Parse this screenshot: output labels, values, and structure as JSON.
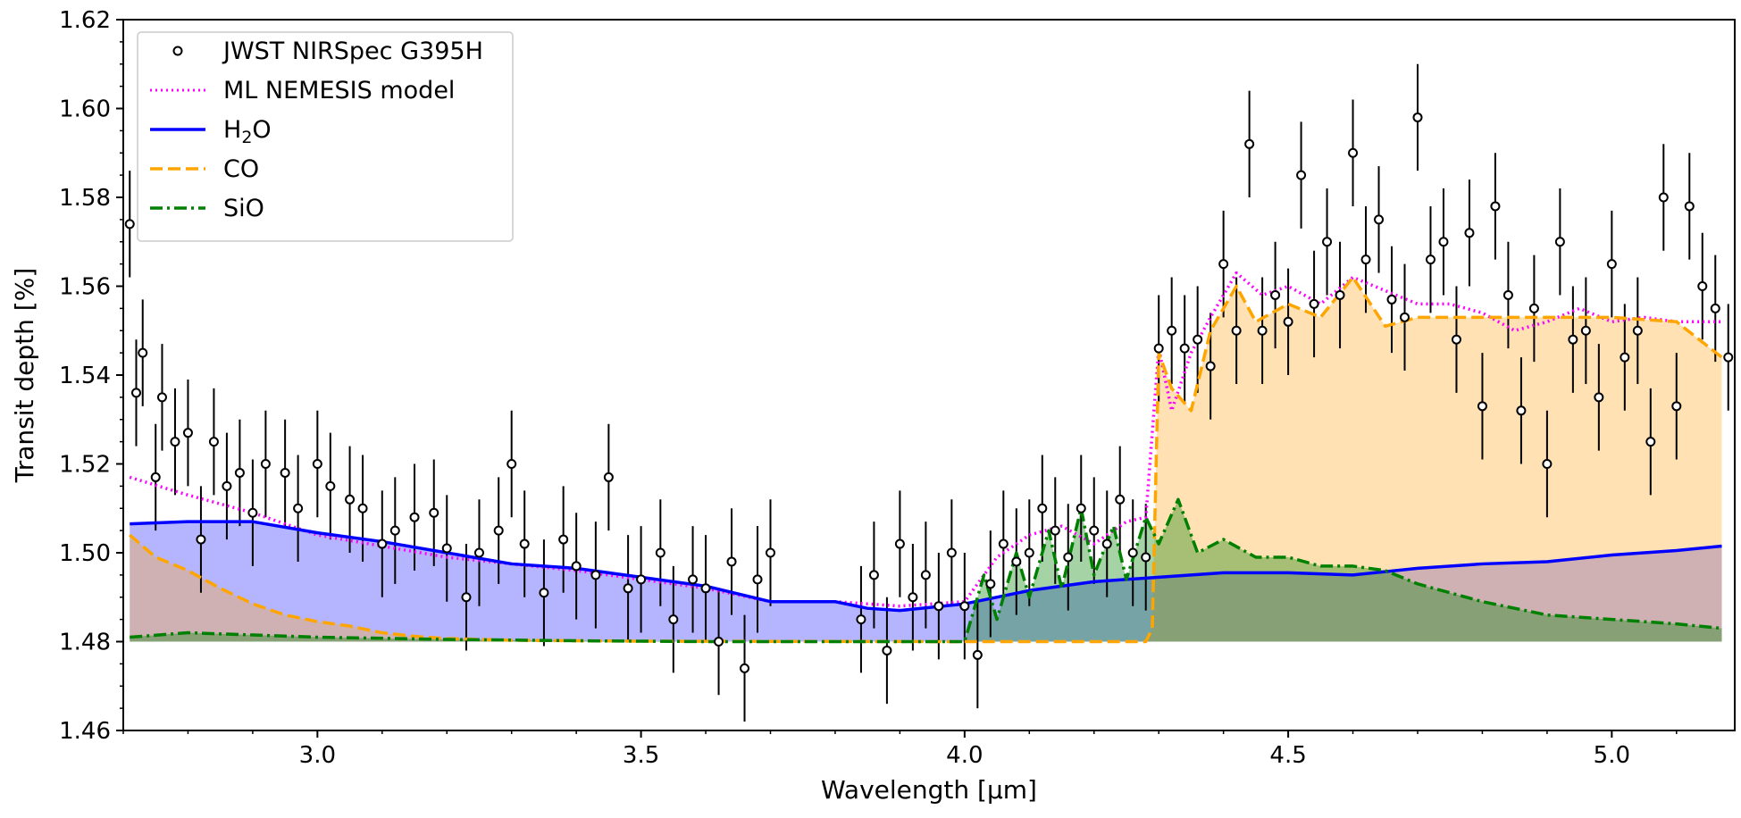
{
  "chart_data": {
    "type": "line",
    "title": "",
    "xlabel": "Wavelength [μm]",
    "ylabel": "Transit depth [%]",
    "xlim": [
      2.7,
      5.19
    ],
    "ylim": [
      1.46,
      1.62
    ],
    "x_ticks": [
      3.0,
      3.5,
      4.0,
      4.5,
      5.0
    ],
    "x_tick_labels": [
      "3.0",
      "3.5",
      "4.0",
      "4.5",
      "5.0"
    ],
    "y_ticks": [
      1.46,
      1.48,
      1.5,
      1.52,
      1.54,
      1.56,
      1.58,
      1.6,
      1.62
    ],
    "y_tick_labels": [
      "1.46",
      "1.48",
      "1.50",
      "1.52",
      "1.54",
      "1.56",
      "1.58",
      "1.60",
      "1.62"
    ],
    "baseline": 1.48,
    "legend_position": "top-left",
    "grid": false,
    "legend": [
      {
        "label": "JWST NIRSpec G395H",
        "style": "marker",
        "color": "#000000"
      },
      {
        "label": "ML NEMESIS model",
        "style": "dotted",
        "color": "#ff00ff"
      },
      {
        "label_main": "H",
        "label_sub": "2",
        "label_tail": "O",
        "style": "solid",
        "color": "#0000ff"
      },
      {
        "label": "CO",
        "style": "dashed",
        "color": "#ffa500"
      },
      {
        "label": "SiO",
        "style": "dashdot",
        "color": "#008000"
      }
    ],
    "series": [
      {
        "name": "ML NEMESIS model",
        "color": "#ff00ff",
        "style": "dotted",
        "x": [
          2.71,
          2.8,
          2.9,
          3.0,
          3.2,
          3.4,
          3.6,
          3.7,
          3.8,
          3.9,
          4.0,
          4.05,
          4.1,
          4.15,
          4.2,
          4.25,
          4.28,
          4.3,
          4.32,
          4.35,
          4.38,
          4.42,
          4.46,
          4.5,
          4.55,
          4.6,
          4.65,
          4.7,
          4.75,
          4.8,
          4.85,
          4.9,
          4.95,
          5.0,
          5.05,
          5.1,
          5.17
        ],
        "y": [
          1.517,
          1.513,
          1.509,
          1.504,
          1.499,
          1.496,
          1.492,
          1.489,
          1.489,
          1.488,
          1.489,
          1.499,
          1.504,
          1.506,
          1.502,
          1.507,
          1.508,
          1.546,
          1.532,
          1.545,
          1.553,
          1.563,
          1.558,
          1.56,
          1.556,
          1.562,
          1.559,
          1.556,
          1.556,
          1.554,
          1.55,
          1.552,
          1.555,
          1.552,
          1.553,
          1.552,
          1.552
        ]
      },
      {
        "name": "H2O",
        "color": "#0000ff",
        "style": "solid",
        "fill": "rgba(90,90,255,0.45)",
        "x": [
          2.71,
          2.8,
          2.9,
          3.0,
          3.1,
          3.2,
          3.3,
          3.4,
          3.5,
          3.6,
          3.7,
          3.8,
          3.85,
          3.9,
          4.0,
          4.1,
          4.2,
          4.3,
          4.4,
          4.5,
          4.6,
          4.7,
          4.8,
          4.9,
          5.0,
          5.1,
          5.17
        ],
        "y": [
          1.5065,
          1.507,
          1.507,
          1.5045,
          1.5025,
          1.5,
          1.4975,
          1.4965,
          1.4945,
          1.4925,
          1.489,
          1.489,
          1.4875,
          1.487,
          1.4885,
          1.4915,
          1.4935,
          1.4945,
          1.4955,
          1.4955,
          1.495,
          1.4965,
          1.4975,
          1.498,
          1.4995,
          1.5005,
          1.5015
        ]
      },
      {
        "name": "CO",
        "color": "#ffa500",
        "style": "dashed",
        "fill": "rgba(255,170,40,0.35)",
        "x": [
          2.71,
          2.75,
          2.8,
          2.85,
          2.9,
          2.95,
          3.0,
          3.05,
          3.1,
          3.15,
          3.2,
          3.3,
          3.5,
          4.0,
          4.25,
          4.28,
          4.29,
          4.3,
          4.32,
          4.35,
          4.38,
          4.42,
          4.45,
          4.5,
          4.55,
          4.6,
          4.65,
          4.7,
          4.8,
          4.9,
          5.0,
          5.1,
          5.17
        ],
        "y": [
          1.504,
          1.499,
          1.496,
          1.492,
          1.4885,
          1.486,
          1.4845,
          1.4835,
          1.482,
          1.4812,
          1.4807,
          1.4803,
          1.4801,
          1.48,
          1.48,
          1.48,
          1.483,
          1.545,
          1.537,
          1.532,
          1.55,
          1.56,
          1.552,
          1.556,
          1.553,
          1.562,
          1.551,
          1.553,
          1.553,
          1.553,
          1.553,
          1.552,
          1.544
        ]
      },
      {
        "name": "SiO",
        "color": "#008000",
        "style": "dashdot",
        "fill": "rgba(0,128,0,0.35)",
        "x": [
          2.71,
          2.8,
          2.9,
          3.0,
          3.2,
          3.4,
          3.6,
          3.8,
          4.0,
          4.03,
          4.05,
          4.08,
          4.1,
          4.13,
          4.15,
          4.18,
          4.2,
          4.23,
          4.25,
          4.28,
          4.3,
          4.33,
          4.36,
          4.4,
          4.45,
          4.5,
          4.55,
          4.6,
          4.65,
          4.7,
          4.75,
          4.8,
          4.9,
          5.0,
          5.1,
          5.17
        ],
        "y": [
          1.481,
          1.482,
          1.4815,
          1.481,
          1.4805,
          1.4802,
          1.48,
          1.48,
          1.48,
          1.495,
          1.485,
          1.5,
          1.49,
          1.505,
          1.492,
          1.51,
          1.495,
          1.506,
          1.494,
          1.508,
          1.502,
          1.512,
          1.5,
          1.503,
          1.499,
          1.499,
          1.497,
          1.497,
          1.496,
          1.493,
          1.491,
          1.489,
          1.486,
          1.485,
          1.484,
          1.483
        ]
      },
      {
        "name": "JWST NIRSpec G395H",
        "color": "#000000",
        "style": "points",
        "x": [
          2.71,
          2.72,
          2.73,
          2.75,
          2.76,
          2.78,
          2.8,
          2.82,
          2.84,
          2.86,
          2.88,
          2.9,
          2.92,
          2.95,
          2.97,
          3.0,
          3.02,
          3.05,
          3.07,
          3.1,
          3.12,
          3.15,
          3.18,
          3.2,
          3.23,
          3.25,
          3.28,
          3.3,
          3.32,
          3.35,
          3.38,
          3.4,
          3.43,
          3.45,
          3.48,
          3.5,
          3.53,
          3.55,
          3.58,
          3.6,
          3.62,
          3.64,
          3.66,
          3.68,
          3.7,
          3.84,
          3.86,
          3.88,
          3.9,
          3.92,
          3.94,
          3.96,
          3.98,
          4.0,
          4.02,
          4.04,
          4.06,
          4.08,
          4.1,
          4.12,
          4.14,
          4.16,
          4.18,
          4.2,
          4.22,
          4.24,
          4.26,
          4.28,
          4.3,
          4.32,
          4.34,
          4.36,
          4.38,
          4.4,
          4.42,
          4.44,
          4.46,
          4.48,
          4.5,
          4.52,
          4.54,
          4.56,
          4.58,
          4.6,
          4.62,
          4.64,
          4.66,
          4.68,
          4.7,
          4.72,
          4.74,
          4.76,
          4.78,
          4.8,
          4.82,
          4.84,
          4.86,
          4.88,
          4.9,
          4.92,
          4.94,
          4.96,
          4.98,
          5.0,
          5.02,
          5.04,
          5.06,
          5.08,
          5.1,
          5.12,
          5.14,
          5.16,
          5.18
        ],
        "y": [
          1.574,
          1.536,
          1.545,
          1.517,
          1.535,
          1.525,
          1.527,
          1.503,
          1.525,
          1.515,
          1.518,
          1.509,
          1.52,
          1.518,
          1.51,
          1.52,
          1.515,
          1.512,
          1.51,
          1.502,
          1.505,
          1.508,
          1.509,
          1.501,
          1.49,
          1.5,
          1.505,
          1.52,
          1.502,
          1.491,
          1.503,
          1.497,
          1.495,
          1.517,
          1.492,
          1.494,
          1.5,
          1.485,
          1.494,
          1.492,
          1.48,
          1.498,
          1.474,
          1.494,
          1.5,
          1.485,
          1.495,
          1.478,
          1.502,
          1.49,
          1.495,
          1.488,
          1.5,
          1.488,
          1.477,
          1.493,
          1.502,
          1.498,
          1.5,
          1.51,
          1.505,
          1.499,
          1.51,
          1.505,
          1.502,
          1.512,
          1.5,
          1.499,
          1.546,
          1.55,
          1.546,
          1.548,
          1.542,
          1.565,
          1.55,
          1.592,
          1.55,
          1.558,
          1.552,
          1.585,
          1.556,
          1.57,
          1.558,
          1.59,
          1.566,
          1.575,
          1.557,
          1.553,
          1.598,
          1.566,
          1.57,
          1.548,
          1.572,
          1.533,
          1.578,
          1.558,
          1.532,
          1.555,
          1.52,
          1.57,
          1.548,
          1.55,
          1.535,
          1.565,
          1.544,
          1.55,
          1.525,
          1.58,
          1.533,
          1.578,
          1.56,
          1.555,
          1.544
        ],
        "yerr": 0.012
      }
    ]
  }
}
